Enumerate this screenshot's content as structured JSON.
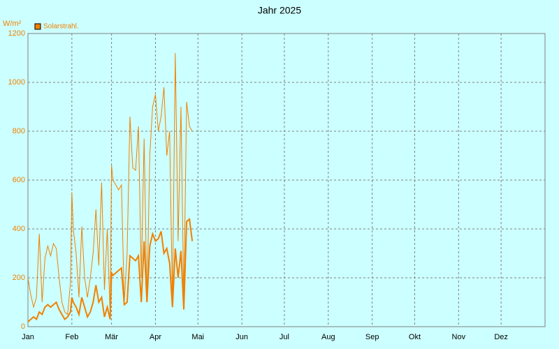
{
  "chart_data": {
    "type": "line",
    "title": "Jahr 2025",
    "y_label": "W/m²",
    "x": [
      0,
      2,
      4,
      6,
      8,
      10,
      12,
      14,
      16,
      18,
      20,
      22,
      24,
      26,
      28,
      30,
      31,
      32,
      34,
      36,
      38,
      40,
      42,
      44,
      46,
      48,
      50,
      52,
      54,
      56,
      58,
      59,
      60,
      62,
      64,
      66,
      68,
      70,
      72,
      74,
      76,
      78,
      80,
      82,
      84,
      86,
      88,
      90,
      92,
      94,
      96,
      98,
      100,
      102,
      104,
      106,
      108,
      110,
      112,
      114,
      116
    ],
    "series": [
      {
        "name": "Solarstrahl.",
        "color": "#f08000",
        "values": [
          200,
          130,
          80,
          120,
          380,
          100,
          280,
          330,
          290,
          340,
          320,
          200,
          100,
          60,
          50,
          180,
          550,
          400,
          300,
          120,
          410,
          200,
          120,
          200,
          300,
          480,
          250,
          590,
          150,
          400,
          50,
          660,
          600,
          580,
          560,
          580,
          100,
          300,
          860,
          650,
          640,
          820,
          200,
          770,
          100,
          700,
          900,
          950,
          800,
          860,
          980,
          700,
          800,
          100,
          1120,
          350,
          900,
          100,
          920,
          820,
          800
        ]
      },
      {
        "color": "#f08000",
        "values": [
          20,
          30,
          40,
          30,
          60,
          50,
          80,
          90,
          80,
          90,
          100,
          70,
          50,
          30,
          40,
          60,
          120,
          100,
          80,
          50,
          120,
          80,
          40,
          60,
          100,
          170,
          100,
          120,
          40,
          80,
          30,
          220,
          210,
          220,
          230,
          240,
          90,
          100,
          290,
          280,
          270,
          290,
          100,
          350,
          100,
          330,
          380,
          350,
          360,
          390,
          300,
          320,
          260,
          80,
          320,
          200,
          310,
          70,
          430,
          440,
          350
        ]
      }
    ],
    "xlim": [
      0,
      365
    ],
    "xticks": [
      {
        "value": 0,
        "label": "Jan"
      },
      {
        "value": 31,
        "label": "Feb"
      },
      {
        "value": 59,
        "label": "Mär"
      },
      {
        "value": 90,
        "label": "Apr"
      },
      {
        "value": 120,
        "label": "Mai"
      },
      {
        "value": 151,
        "label": "Jun"
      },
      {
        "value": 181,
        "label": "Jul"
      },
      {
        "value": 212,
        "label": "Aug"
      },
      {
        "value": 243,
        "label": "Sep"
      },
      {
        "value": 273,
        "label": "Okt"
      },
      {
        "value": 304,
        "label": "Nov"
      },
      {
        "value": 334,
        "label": "Dez"
      }
    ],
    "ylim": [
      0,
      1200
    ],
    "yticks": [
      0,
      200,
      400,
      600,
      800,
      1000,
      1200
    ],
    "grid": true
  }
}
